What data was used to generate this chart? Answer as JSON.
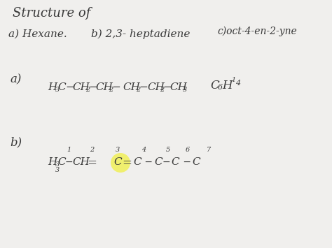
{
  "background_color": "#f0efed",
  "text_color": "#3a3a3a",
  "highlight_color": "#f0f060",
  "highlight_alpha": 0.9,
  "title": "Structure of",
  "line1": "a) Hexane.",
  "line1b": "b) 2,3- heptadiene",
  "line1c": "c)oct-4-en-2-yne",
  "section_a": "a)",
  "section_b": "b)"
}
